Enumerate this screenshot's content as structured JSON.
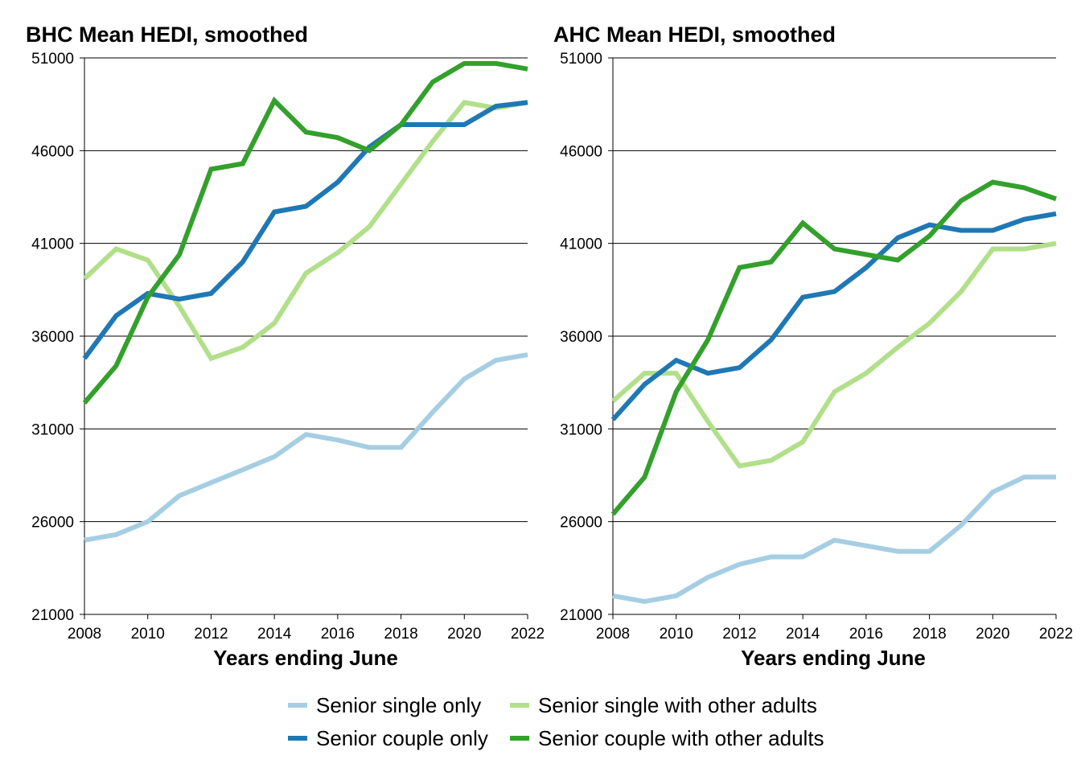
{
  "chart_data": [
    {
      "type": "line",
      "title": "BHC Mean HEDI, smoothed",
      "xlabel": "Years ending June",
      "ylabel": "",
      "x": [
        2008,
        2009,
        2010,
        2011,
        2012,
        2013,
        2014,
        2015,
        2016,
        2017,
        2018,
        2019,
        2020,
        2021,
        2022
      ],
      "xticks": [
        "2008",
        "2010",
        "2012",
        "2014",
        "2016",
        "2018",
        "2020",
        "2022"
      ],
      "yticks": [
        "21000",
        "26000",
        "31000",
        "36000",
        "41000",
        "46000",
        "51000"
      ],
      "xlim": [
        2008,
        2022
      ],
      "ylim": [
        21000,
        51000
      ],
      "grid": "horizontal",
      "series": [
        {
          "name": "Senior single only",
          "color": "#a6cee3",
          "values": [
            25000,
            25300,
            26000,
            27400,
            28100,
            28800,
            29500,
            30700,
            30400,
            30000,
            30000,
            31900,
            33700,
            34700,
            35000
          ]
        },
        {
          "name": "Senior single with other adults",
          "color": "#b2df8a",
          "values": [
            39100,
            40700,
            40100,
            37600,
            34800,
            35400,
            36700,
            39400,
            40500,
            41900,
            44200,
            46500,
            48600,
            48300,
            48600
          ]
        },
        {
          "name": "Senior couple only",
          "color": "#1f78b4",
          "values": [
            34800,
            37100,
            38300,
            38000,
            38300,
            40000,
            42700,
            43000,
            44300,
            46200,
            47400,
            47400,
            47400,
            48400,
            48600
          ]
        },
        {
          "name": "Senior couple with other adults",
          "color": "#33a02c",
          "values": [
            32400,
            34400,
            38100,
            40400,
            45000,
            45300,
            48700,
            47000,
            46700,
            46000,
            47400,
            49700,
            50700,
            50700,
            50400
          ]
        }
      ]
    },
    {
      "type": "line",
      "title": "AHC Mean HEDI, smoothed",
      "xlabel": "Years ending June",
      "ylabel": "",
      "x": [
        2008,
        2009,
        2010,
        2011,
        2012,
        2013,
        2014,
        2015,
        2016,
        2017,
        2018,
        2019,
        2020,
        2021,
        2022
      ],
      "xticks": [
        "2008",
        "2010",
        "2012",
        "2014",
        "2016",
        "2018",
        "2020",
        "2022"
      ],
      "yticks": [
        "21000",
        "26000",
        "31000",
        "36000",
        "41000",
        "46000",
        "51000"
      ],
      "xlim": [
        2008,
        2022
      ],
      "ylim": [
        21000,
        51000
      ],
      "grid": "horizontal",
      "series": [
        {
          "name": "Senior single only",
          "color": "#a6cee3",
          "values": [
            22000,
            21700,
            22000,
            23000,
            23700,
            24100,
            24100,
            25000,
            24700,
            24400,
            24400,
            25800,
            27600,
            28400,
            28400
          ]
        },
        {
          "name": "Senior single with other adults",
          "color": "#b2df8a",
          "values": [
            32500,
            34000,
            34000,
            31400,
            29000,
            29300,
            30300,
            33000,
            34000,
            35400,
            36700,
            38400,
            40700,
            40700,
            41000
          ]
        },
        {
          "name": "Senior couple only",
          "color": "#1f78b4",
          "values": [
            31500,
            33400,
            34700,
            34000,
            34300,
            35800,
            38100,
            38400,
            39700,
            41300,
            42000,
            41700,
            41700,
            42300,
            42600
          ]
        },
        {
          "name": "Senior couple with other adults",
          "color": "#33a02c",
          "values": [
            26400,
            28400,
            33000,
            35800,
            39700,
            40000,
            42100,
            40700,
            40400,
            40100,
            41400,
            43300,
            44300,
            44000,
            43400
          ]
        }
      ]
    }
  ],
  "legend": {
    "placement": "bottom",
    "items": [
      {
        "label": "Senior single only",
        "color": "#a6cee3"
      },
      {
        "label": "Senior single with other adults",
        "color": "#b2df8a"
      },
      {
        "label": "Senior couple only",
        "color": "#1f78b4"
      },
      {
        "label": "Senior couple with other adults",
        "color": "#33a02c"
      }
    ]
  }
}
